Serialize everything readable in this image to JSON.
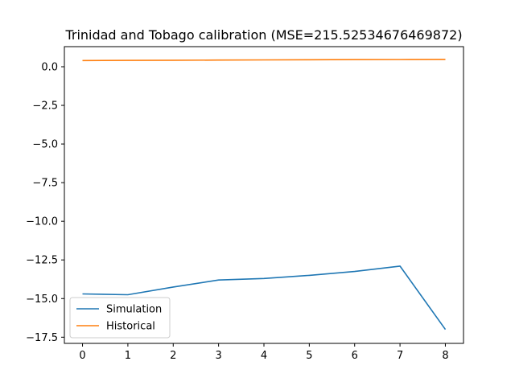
{
  "chart_data": {
    "type": "line",
    "title": "Trinidad and Tobago calibration (MSE=215.52534676469872)",
    "xlabel": "",
    "ylabel": "",
    "x": [
      0,
      1,
      2,
      3,
      4,
      5,
      6,
      7,
      8
    ],
    "xlim": [
      -0.4,
      8.4
    ],
    "ylim": [
      -17.9,
      1.3
    ],
    "xticks": [
      0,
      1,
      2,
      3,
      4,
      5,
      6,
      7,
      8
    ],
    "xtick_labels": [
      "0",
      "1",
      "2",
      "3",
      "4",
      "5",
      "6",
      "7",
      "8"
    ],
    "yticks": [
      0,
      -2.5,
      -5,
      -7.5,
      -10,
      -12.5,
      -15,
      -17.5
    ],
    "ytick_labels": [
      "0.0",
      "−2.5",
      "−5.0",
      "−7.5",
      "−10.0",
      "−12.5",
      "−15.0",
      "−17.5"
    ],
    "grid": false,
    "legend_position": "lower-left",
    "series": [
      {
        "name": "Simulation",
        "color": "#1f77b4",
        "values": [
          -14.7,
          -14.75,
          -14.25,
          -13.8,
          -13.7,
          -13.5,
          -13.25,
          -12.9,
          -17.0
        ]
      },
      {
        "name": "Historical",
        "color": "#ff7f0e",
        "values": [
          0.4,
          0.41,
          0.42,
          0.43,
          0.44,
          0.45,
          0.46,
          0.47,
          0.48
        ]
      }
    ]
  }
}
